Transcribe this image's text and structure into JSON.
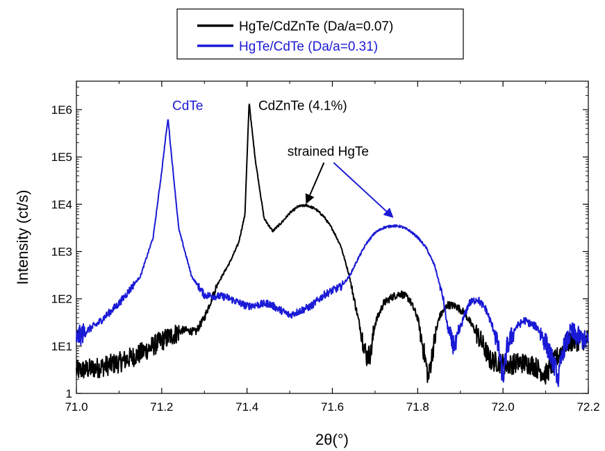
{
  "chart_data": {
    "type": "line",
    "xlabel": "2θ(°)",
    "ylabel": "Intensity (ct/s)",
    "xlim": [
      71.0,
      72.2
    ],
    "ylim": [
      1,
      4000000
    ],
    "yscale": "log",
    "grid": false,
    "legend_position": "top-center",
    "x_ticks": [
      71.0,
      71.2,
      71.4,
      71.6,
      71.8,
      72.0,
      72.2
    ],
    "x_tick_labels": [
      "71.0",
      "71.2",
      "71.4",
      "71.6",
      "71.8",
      "72.0",
      "72.2"
    ],
    "y_ticks": [
      1,
      10,
      100,
      1000,
      10000,
      100000,
      1000000
    ],
    "y_tick_labels": [
      "1",
      "1E1",
      "1E2",
      "1E3",
      "1E4",
      "1E5",
      "1E6"
    ],
    "series": [
      {
        "name": "HgTe/CdZnTe (Da/a=0.07)",
        "color": "#000000",
        "x": [
          71.0,
          71.05,
          71.1,
          71.15,
          71.2,
          71.25,
          71.28,
          71.3,
          71.33,
          71.36,
          71.38,
          71.395,
          71.405,
          71.41,
          71.42,
          71.44,
          71.46,
          71.48,
          71.5,
          71.52,
          71.54,
          71.56,
          71.58,
          71.6,
          71.62,
          71.64,
          71.66,
          71.68,
          71.69,
          71.7,
          71.72,
          71.74,
          71.76,
          71.78,
          71.8,
          71.82,
          71.825,
          71.835,
          71.85,
          71.87,
          71.89,
          71.91,
          71.93,
          71.95,
          71.97,
          71.99,
          72.01,
          72.04,
          72.07,
          72.1,
          72.15,
          72.2
        ],
        "y": [
          3,
          3.5,
          4.5,
          7,
          13,
          22,
          20,
          40,
          200,
          600,
          1500,
          6000,
          1500000,
          500000,
          80000,
          5000,
          2700,
          4000,
          6500,
          9000,
          9500,
          8000,
          5500,
          3000,
          1300,
          300,
          40,
          6,
          7,
          30,
          80,
          110,
          130,
          100,
          40,
          4,
          2,
          8,
          40,
          75,
          70,
          50,
          25,
          12,
          5,
          4.5,
          4,
          4.5,
          4,
          2.5,
          12,
          14
        ]
      },
      {
        "name": "HgTe/CdTe (Da/a=0.31)",
        "color": "#1a1ad6",
        "x": [
          71.0,
          71.05,
          71.1,
          71.15,
          71.18,
          71.2,
          71.21,
          71.215,
          71.22,
          71.24,
          71.27,
          71.3,
          71.35,
          71.4,
          71.45,
          71.5,
          71.55,
          71.58,
          71.6,
          71.62,
          71.64,
          71.66,
          71.68,
          71.7,
          71.72,
          71.74,
          71.76,
          71.78,
          71.8,
          71.82,
          71.84,
          71.86,
          71.87,
          71.88,
          71.89,
          71.9,
          71.92,
          71.94,
          71.96,
          71.98,
          71.99,
          72.0,
          72.01,
          72.03,
          72.05,
          72.08,
          72.1,
          72.12,
          72.13,
          72.14,
          72.16,
          72.18,
          72.2
        ],
        "y": [
          15,
          30,
          80,
          300,
          2000,
          50000,
          300000,
          650000,
          200000,
          3000,
          300,
          120,
          110,
          70,
          80,
          45,
          70,
          120,
          150,
          180,
          300,
          700,
          1500,
          2500,
          3200,
          3500,
          3400,
          2800,
          2000,
          1200,
          500,
          100,
          25,
          12,
          10,
          25,
          80,
          100,
          60,
          20,
          8,
          2,
          10,
          25,
          35,
          25,
          12,
          4,
          2,
          8,
          20,
          15,
          12
        ]
      }
    ],
    "annotations": [
      {
        "text": "CdTe",
        "x": 71.215,
        "y": 1200000
      },
      {
        "text": "CdZnTe (4.1%)",
        "x": 71.42,
        "y": 1200000
      },
      {
        "text": "strained HgTe",
        "x": 71.59,
        "y": 130000
      }
    ]
  }
}
